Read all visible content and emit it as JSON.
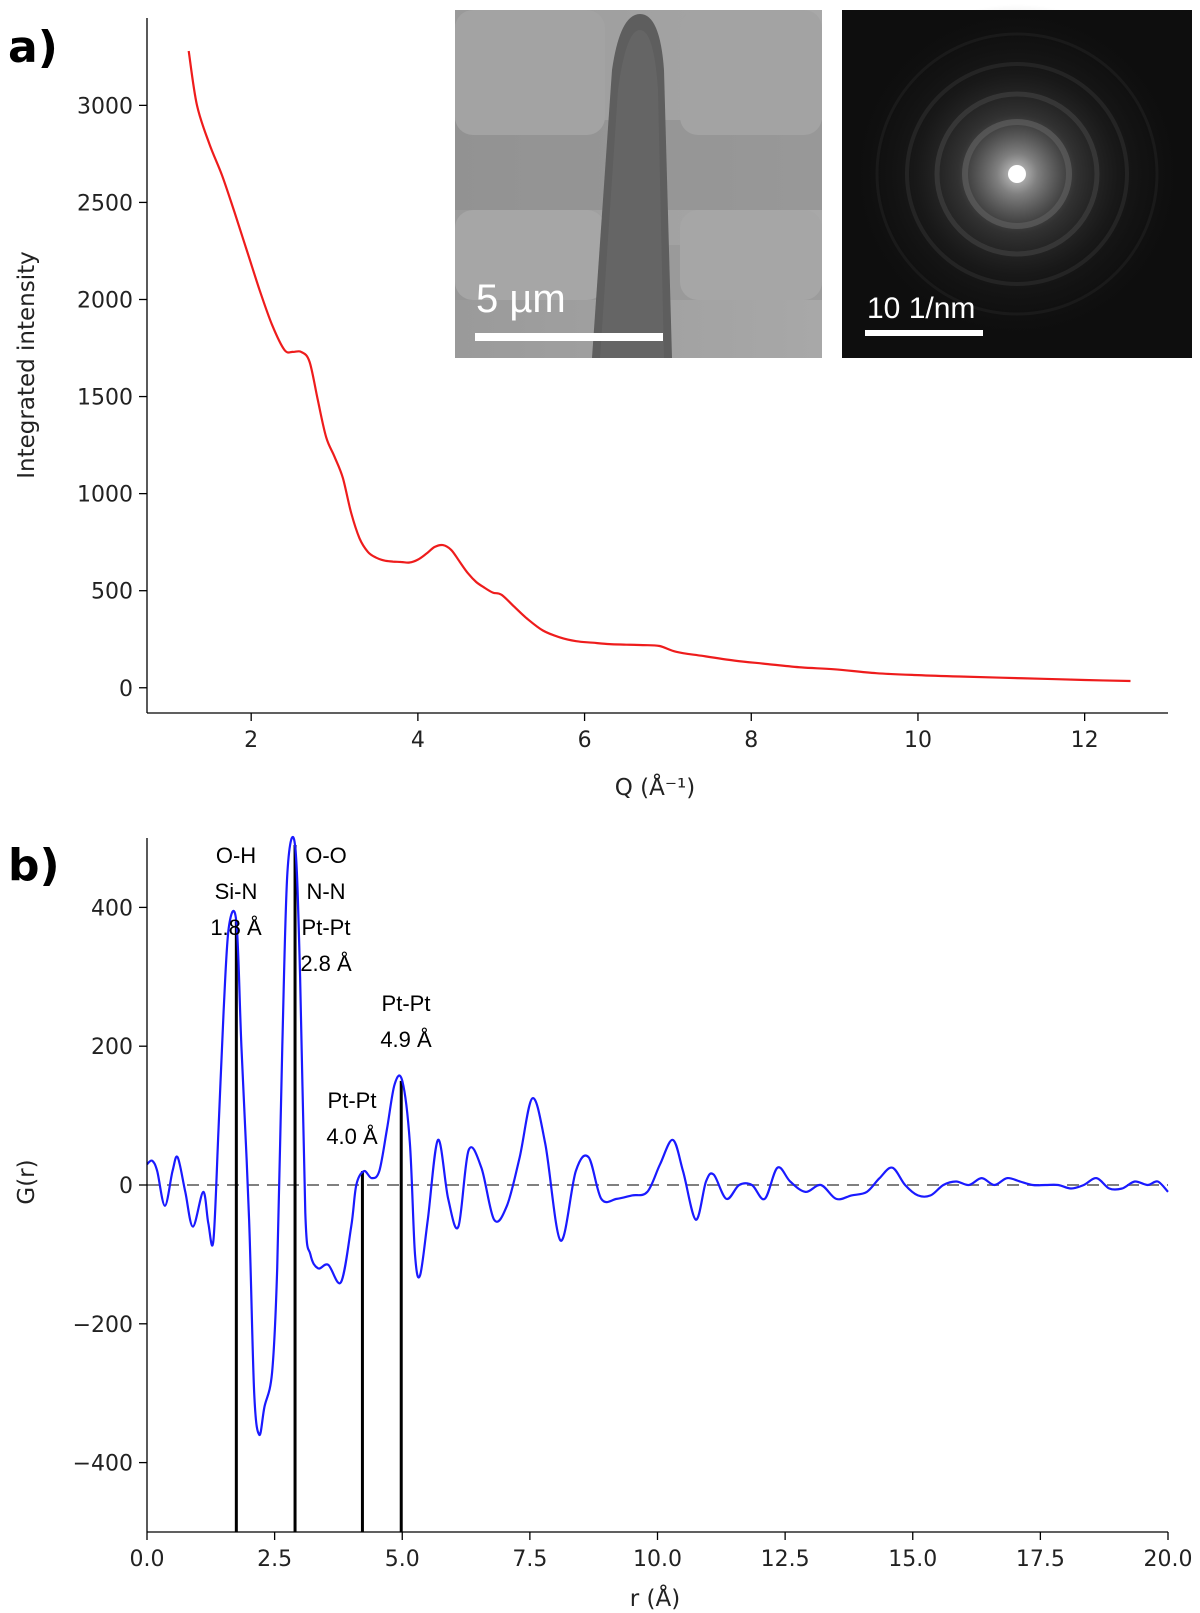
{
  "panels": {
    "a": {
      "label": "a)"
    },
    "b": {
      "label": "b)"
    }
  },
  "insets": {
    "tem_image": {
      "scalebar_label": "5 µm"
    },
    "diffraction_pattern": {
      "scalebar_label": "10 1/nm"
    }
  },
  "chart_data": [
    {
      "type": "line",
      "panel": "a",
      "xlabel": "Q (Å⁻¹)",
      "ylabel": "Integrated intensity",
      "xlim": [
        0.75,
        13.0
      ],
      "ylim": [
        -130,
        3450
      ],
      "xticks": [
        2,
        4,
        6,
        8,
        10,
        12
      ],
      "xtick_labels": [
        "2",
        "4",
        "6",
        "8",
        "10",
        "12"
      ],
      "yticks": [
        0,
        500,
        1000,
        1500,
        2000,
        2500,
        3000
      ],
      "ytick_labels": [
        "0",
        "500",
        "1000",
        "1500",
        "2000",
        "2500",
        "3000"
      ],
      "grid": false,
      "series": [
        {
          "color": "#ee1c1c",
          "x": [
            1.25,
            1.35,
            1.5,
            1.65,
            1.8,
            1.95,
            2.1,
            2.25,
            2.4,
            2.5,
            2.6,
            2.7,
            2.8,
            2.9,
            3.0,
            3.1,
            3.2,
            3.3,
            3.4,
            3.5,
            3.6,
            3.7,
            3.8,
            3.9,
            4.0,
            4.1,
            4.2,
            4.3,
            4.4,
            4.5,
            4.6,
            4.7,
            4.8,
            4.9,
            5.0,
            5.15,
            5.3,
            5.5,
            5.7,
            5.9,
            6.1,
            6.3,
            6.5,
            6.7,
            6.9,
            7.1,
            7.4,
            7.8,
            8.2,
            8.6,
            9.0,
            9.5,
            10.0,
            10.5,
            11.0,
            11.5,
            12.0,
            12.55
          ],
          "y": [
            3280,
            3000,
            2800,
            2640,
            2450,
            2250,
            2050,
            1870,
            1740,
            1730,
            1730,
            1680,
            1480,
            1290,
            1190,
            1080,
            900,
            770,
            700,
            670,
            655,
            650,
            648,
            645,
            660,
            690,
            725,
            735,
            710,
            650,
            590,
            545,
            515,
            490,
            480,
            420,
            360,
            295,
            260,
            240,
            232,
            225,
            222,
            220,
            215,
            185,
            165,
            140,
            122,
            105,
            95,
            75,
            65,
            58,
            52,
            46,
            40,
            35
          ]
        }
      ]
    },
    {
      "type": "line",
      "panel": "b",
      "xlabel": "r (Å)",
      "ylabel": "G(r)",
      "xlim": [
        0.0,
        20.0
      ],
      "ylim": [
        -500,
        500
      ],
      "xticks": [
        0.0,
        2.5,
        5.0,
        7.5,
        10.0,
        12.5,
        15.0,
        17.5,
        20.0
      ],
      "xtick_labels": [
        "0.0",
        "2.5",
        "5.0",
        "7.5",
        "10.0",
        "12.5",
        "15.0",
        "17.5",
        "20.0"
      ],
      "yticks": [
        -400,
        -200,
        0,
        200,
        400
      ],
      "ytick_labels": [
        "−400",
        "−200",
        "0",
        "200",
        "400"
      ],
      "grid": false,
      "reference_line": {
        "y": 0,
        "style": "dashed",
        "color": "#808080"
      },
      "series": [
        {
          "color": "#1a1aff",
          "x": [
            0.0,
            0.1,
            0.2,
            0.35,
            0.5,
            0.6,
            0.75,
            0.9,
            1.1,
            1.2,
            1.3,
            1.4,
            1.5,
            1.6,
            1.75,
            1.85,
            2.0,
            2.1,
            2.2,
            2.3,
            2.45,
            2.55,
            2.65,
            2.75,
            2.9,
            3.0,
            3.1,
            3.2,
            3.35,
            3.55,
            3.8,
            4.0,
            4.1,
            4.25,
            4.4,
            4.55,
            4.7,
            4.85,
            5.0,
            5.15,
            5.25,
            5.35,
            5.5,
            5.7,
            5.9,
            6.1,
            6.3,
            6.55,
            6.8,
            7.05,
            7.3,
            7.55,
            7.8,
            8.1,
            8.4,
            8.65,
            8.9,
            9.2,
            9.5,
            9.8,
            10.05,
            10.3,
            10.5,
            10.75,
            10.95,
            11.1,
            11.35,
            11.6,
            11.85,
            12.1,
            12.35,
            12.6,
            12.9,
            13.2,
            13.5,
            13.8,
            14.1,
            14.35,
            14.6,
            14.85,
            15.1,
            15.35,
            15.6,
            15.85,
            16.1,
            16.35,
            16.6,
            16.85,
            17.1,
            17.35,
            17.6,
            17.85,
            18.1,
            18.35,
            18.6,
            18.85,
            19.1,
            19.35,
            19.6,
            19.8,
            20.0
          ],
          "y": [
            30,
            35,
            20,
            -30,
            20,
            40,
            -10,
            -60,
            -10,
            -55,
            -80,
            80,
            250,
            370,
            380,
            200,
            -50,
            -300,
            -360,
            -320,
            -270,
            -120,
            200,
            450,
            490,
            300,
            -40,
            -100,
            -120,
            -115,
            -140,
            -60,
            0,
            20,
            10,
            20,
            80,
            145,
            150,
            60,
            -100,
            -130,
            -50,
            65,
            -20,
            -60,
            50,
            25,
            -50,
            -30,
            40,
            125,
            60,
            -80,
            20,
            40,
            -20,
            -20,
            -15,
            -10,
            30,
            65,
            20,
            -50,
            5,
            15,
            -20,
            0,
            0,
            -20,
            25,
            5,
            -10,
            0,
            -20,
            -15,
            -10,
            10,
            25,
            0,
            -15,
            -15,
            0,
            5,
            0,
            10,
            0,
            10,
            5,
            0,
            0,
            0,
            -5,
            0,
            10,
            -5,
            -5,
            5,
            0,
            5,
            -10
          ]
        }
      ],
      "annotations": [
        {
          "x": 1.75,
          "lines": [
            "O-H",
            "Si-N",
            "1.8 Å"
          ]
        },
        {
          "x": 2.9,
          "lines": [
            "O-O",
            "N-N",
            "Pt-Pt",
            "2.8 Å"
          ]
        },
        {
          "x": 4.9,
          "lines": [
            "Pt-Pt",
            "4.9 Å"
          ]
        },
        {
          "x": 4.25,
          "lines": [
            "Pt-Pt",
            "4.0 Å"
          ]
        }
      ],
      "stick_lines": [
        {
          "x": 1.75,
          "y": 380
        },
        {
          "x": 2.9,
          "y": 490
        },
        {
          "x": 4.22,
          "y": 20
        },
        {
          "x": 4.98,
          "y": 150
        }
      ]
    }
  ]
}
